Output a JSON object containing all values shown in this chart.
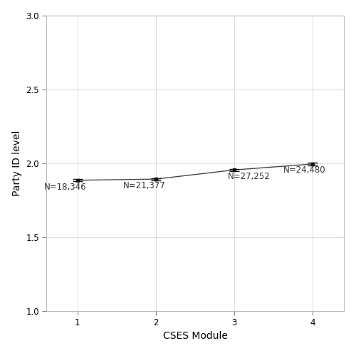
{
  "x": [
    1,
    2,
    3,
    4
  ],
  "y": [
    1.885,
    1.893,
    1.955,
    1.995
  ],
  "yerr": [
    0.008,
    0.007,
    0.007,
    0.009
  ],
  "labels": [
    "N=18,346",
    "N=21,377",
    "N=27,252",
    "N=24,480"
  ],
  "xlabel": "CSES Module",
  "ylabel": "Party ID level",
  "xlim": [
    0.6,
    4.4
  ],
  "ylim": [
    1.0,
    3.0
  ],
  "yticks": [
    1.0,
    1.5,
    2.0,
    2.5,
    3.0
  ],
  "xticks": [
    1,
    2,
    3,
    4
  ],
  "line_color": "#444444",
  "marker_color": "#111111",
  "bg_color": "#ffffff",
  "grid_color": "#d8d8d8",
  "label_fontsize": 8.5,
  "tick_fontsize": 8.5,
  "axis_label_fontsize": 10
}
